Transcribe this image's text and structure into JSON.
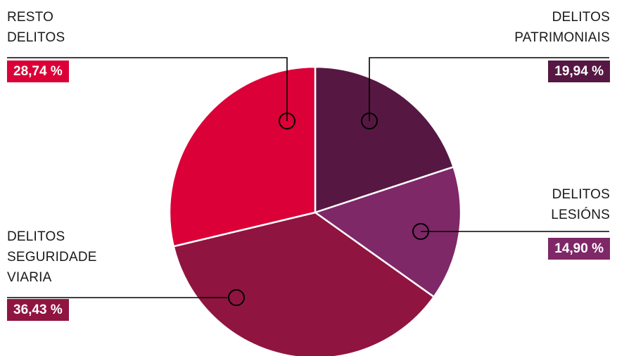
{
  "chart_data": {
    "type": "pie",
    "start_angle_deg": 0,
    "slices": [
      {
        "label": "DELITOS\nPATRIMONIAIS",
        "value": 19.94,
        "display": "19,94 %",
        "color": "#561842"
      },
      {
        "label": "DELITOS\nLESIÓNS",
        "value": 14.9,
        "display": "14,90 %",
        "color": "#7e2868"
      },
      {
        "label": "DELITOS\nSEGURIDADE\nVIARIA",
        "value": 36.43,
        "display": "36,43 %",
        "color": "#901440"
      },
      {
        "label": "RESTO\nDELITOS",
        "value": 28.74,
        "display": "28,74 %",
        "color": "#db0037"
      }
    ]
  }
}
